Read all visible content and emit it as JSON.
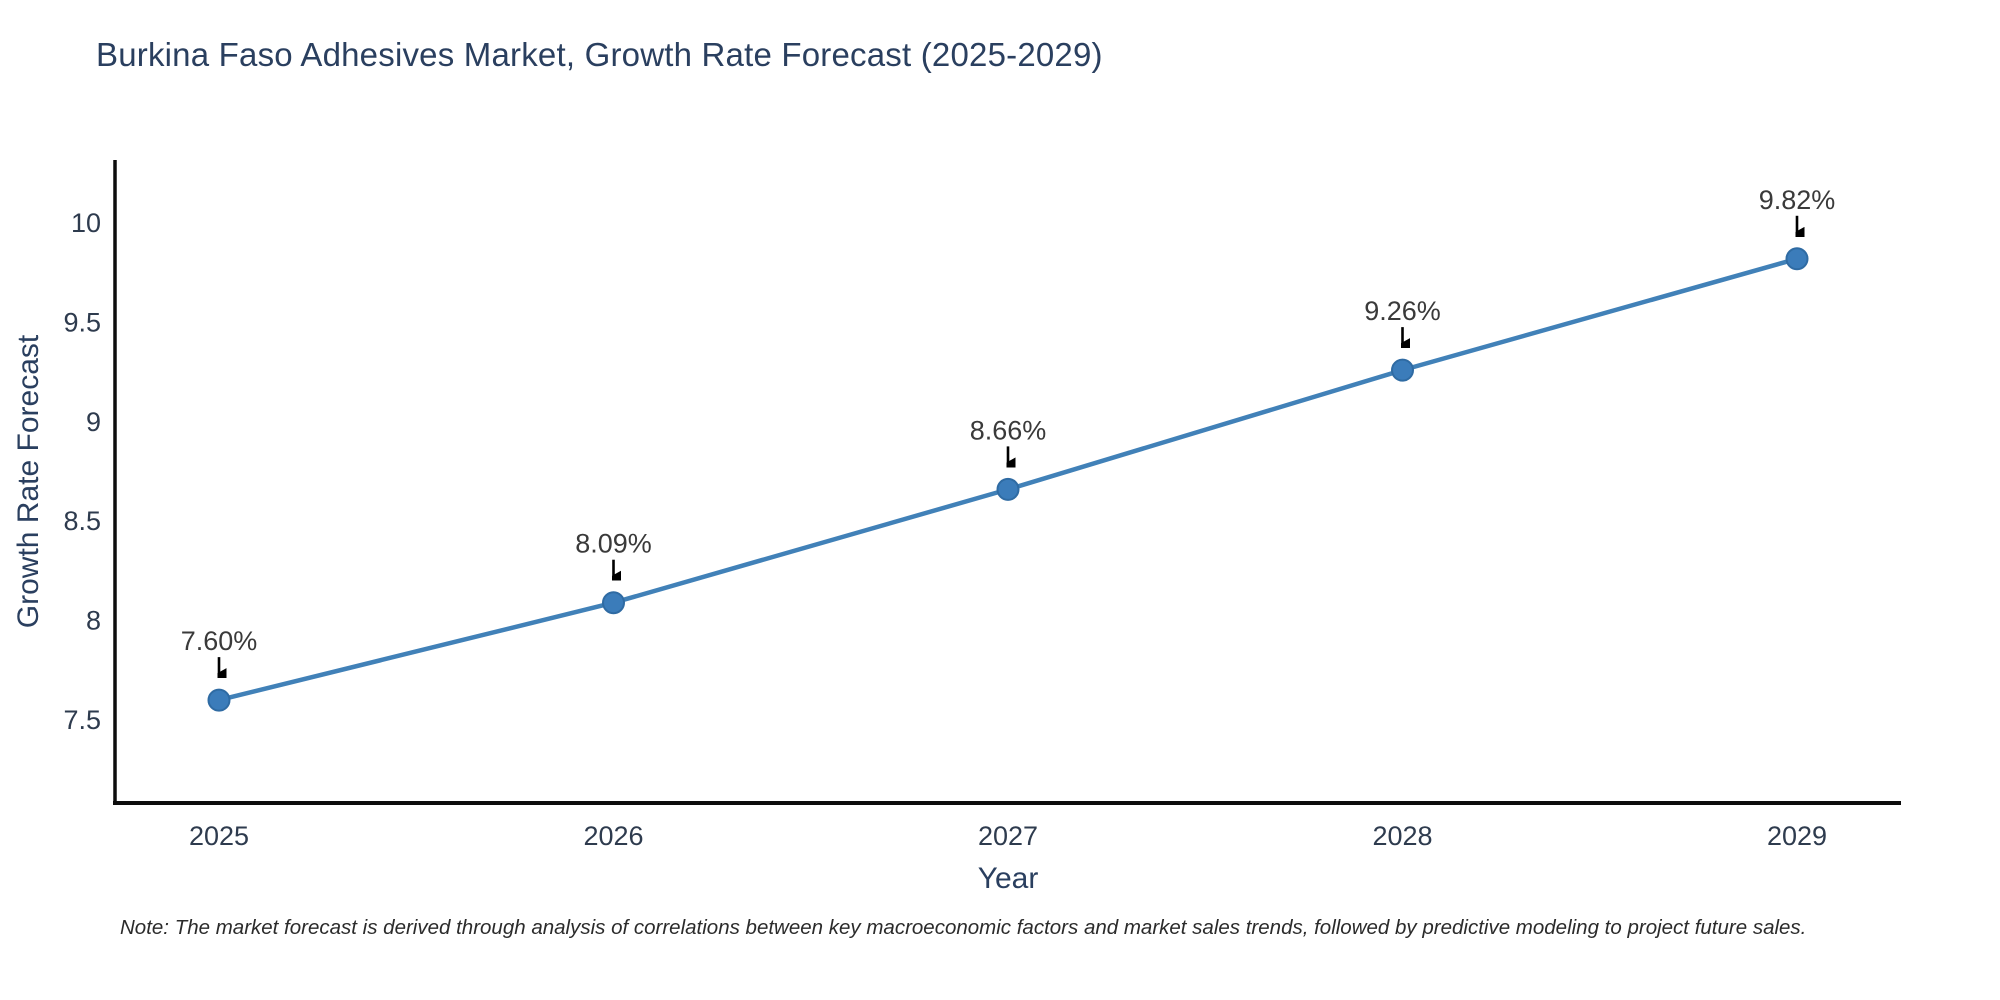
{
  "chart_data": {
    "type": "line",
    "title": "Burkina Faso Adhesives Market, Growth Rate Forecast (2025-2029)",
    "xlabel": "Year",
    "ylabel": "Growth Rate Forecast",
    "categories": [
      2025,
      2026,
      2027,
      2028,
      2029
    ],
    "values": [
      7.6,
      8.09,
      8.66,
      9.26,
      9.82
    ],
    "point_labels": [
      "7.60%",
      "8.09%",
      "8.66%",
      "9.26%",
      "9.82%"
    ],
    "y_ticks": [
      7.5,
      8,
      8.5,
      9,
      9.5,
      10
    ],
    "y_tick_labels": [
      "7.5",
      "8",
      "8.5",
      "9",
      "9.5",
      "10"
    ],
    "x_tick_labels": [
      "2025",
      "2026",
      "2027",
      "2028",
      "2029"
    ],
    "ylim": [
      7.09,
      10.32
    ],
    "grid": "off",
    "legend": "none",
    "annotation_arrow": "down-arrow",
    "colors": {
      "line": "#4181b8",
      "marker_fill": "#3b7cba",
      "marker_edge": "#2f6ba3",
      "axis": "#0d0d0d",
      "title_text": "#2a3f5f",
      "tick_text": "#2e3b4e",
      "annotation_text": "#3a3a3a",
      "arrow": "#000000",
      "background": "#ffffff"
    },
    "note": "Note: The market forecast is derived through analysis of correlations between key macroeconomic factors and market sales trends, followed by predictive modeling to project future sales."
  }
}
